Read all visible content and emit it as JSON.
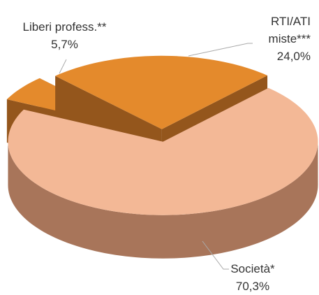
{
  "chart_data": {
    "type": "pie",
    "categories": [
      "Liberi profess.**",
      "RTI/ATI miste***",
      "Società*"
    ],
    "values": [
      5.7,
      24.0,
      70.3
    ],
    "value_labels": [
      "5,7%",
      "24,0%",
      "70,3%"
    ],
    "colors": [
      "#e48a2c",
      "#e48a2c",
      "#f3b896"
    ],
    "side_colors": [
      "#94561c",
      "#94561c",
      "#a8755a"
    ]
  }
}
